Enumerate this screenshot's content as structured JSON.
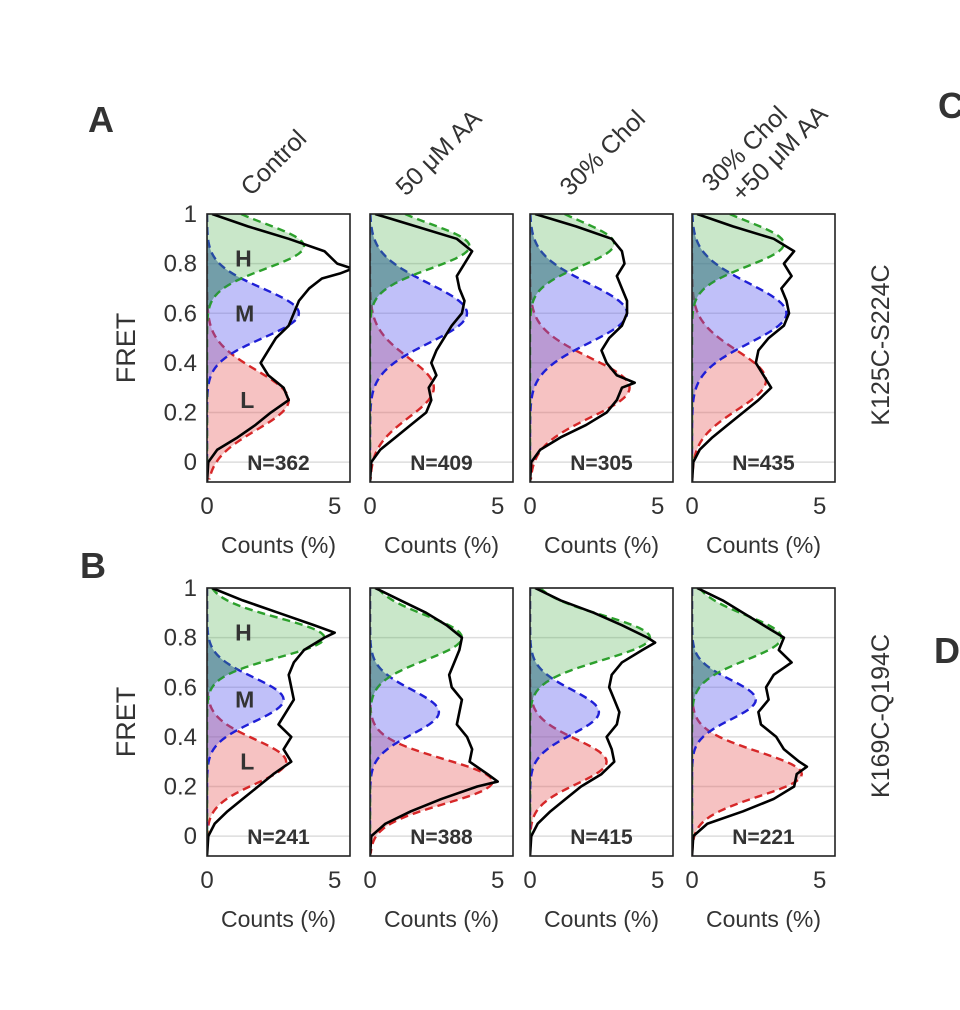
{
  "panels": [
    {
      "letter": "A"
    },
    {
      "letter": "B"
    }
  ],
  "edge_letters": [
    "C",
    "D"
  ],
  "chart_data": {
    "type": "histogram-grid",
    "column_titles": [
      [
        "Control"
      ],
      [
        "50 μM AA"
      ],
      [
        "30% Chol"
      ],
      [
        "30% Chol",
        "+50 μM AA"
      ]
    ],
    "row_labels": [
      "K125C-S224C",
      "K169C-Q194C"
    ],
    "ylabel": "FRET",
    "xlabel": "Counts (%)",
    "y_ticks": [
      "1",
      "0.8",
      "0.6",
      "0.4",
      "0.2",
      "0"
    ],
    "y_tick_values": [
      1,
      0.8,
      0.6,
      0.4,
      0.2,
      0
    ],
    "x_ticks": [
      "0",
      "5"
    ],
    "x_tick_values": [
      0,
      5
    ],
    "ylim": [
      -0.08,
      1.0
    ],
    "xlim": [
      0,
      5.6
    ],
    "grid": true,
    "component_labels": [
      "H",
      "M",
      "L"
    ],
    "component_colors": {
      "H": "#2ca02c",
      "M": "#1f1fd6",
      "L": "#d62728"
    },
    "grid_rows": [
      {
        "name": "K125C-S224C",
        "cells": [
          {
            "n_label": "N=362",
            "total": {
              "y": [
                1.0,
                0.95,
                0.9,
                0.85,
                0.8,
                0.78,
                0.76,
                0.74,
                0.7,
                0.65,
                0.6,
                0.55,
                0.5,
                0.45,
                0.4,
                0.35,
                0.3,
                0.25,
                0.2,
                0.15,
                0.1,
                0.05,
                0.0
              ],
              "x": [
                0.2,
                1.6,
                3.2,
                4.6,
                5.1,
                5.7,
                5.2,
                4.5,
                4.0,
                3.6,
                3.4,
                3.2,
                2.7,
                2.4,
                2.1,
                2.4,
                3.0,
                3.2,
                2.5,
                1.9,
                1.2,
                0.4,
                0.05
              ]
            },
            "H": {
              "center": 0.87,
              "width": 0.09,
              "amp": 3.8
            },
            "M": {
              "center": 0.6,
              "width": 0.1,
              "amp": 3.6
            },
            "L": {
              "center": 0.25,
              "width": 0.12,
              "amp": 3.2
            }
          },
          {
            "n_label": "N=409",
            "total": {
              "y": [
                1.0,
                0.95,
                0.9,
                0.85,
                0.8,
                0.75,
                0.7,
                0.65,
                0.6,
                0.55,
                0.5,
                0.45,
                0.4,
                0.35,
                0.3,
                0.25,
                0.2,
                0.15,
                0.1,
                0.05,
                0.0
              ],
              "x": [
                0.2,
                1.8,
                3.4,
                4.0,
                3.7,
                3.4,
                3.5,
                3.7,
                3.6,
                3.2,
                2.9,
                2.6,
                2.4,
                2.6,
                2.3,
                2.4,
                2.2,
                1.6,
                1.0,
                0.4,
                0.05
              ]
            },
            "H": {
              "center": 0.87,
              "width": 0.09,
              "amp": 3.9
            },
            "M": {
              "center": 0.6,
              "width": 0.12,
              "amp": 3.8
            },
            "L": {
              "center": 0.3,
              "width": 0.12,
              "amp": 2.5
            }
          },
          {
            "n_label": "N=305",
            "total": {
              "y": [
                1.0,
                0.95,
                0.9,
                0.85,
                0.8,
                0.75,
                0.7,
                0.65,
                0.6,
                0.55,
                0.5,
                0.45,
                0.4,
                0.35,
                0.32,
                0.3,
                0.25,
                0.2,
                0.15,
                0.1,
                0.05,
                0.0
              ],
              "x": [
                0.2,
                1.8,
                3.2,
                3.6,
                3.7,
                3.4,
                3.6,
                3.8,
                3.8,
                3.6,
                3.1,
                2.8,
                3.0,
                3.4,
                4.1,
                3.6,
                3.4,
                3.0,
                2.2,
                1.2,
                0.4,
                0.05
              ]
            },
            "H": {
              "center": 0.88,
              "width": 0.09,
              "amp": 3.3
            },
            "M": {
              "center": 0.6,
              "width": 0.12,
              "amp": 3.8
            },
            "L": {
              "center": 0.3,
              "width": 0.12,
              "amp": 3.9
            }
          },
          {
            "n_label": "N=435",
            "total": {
              "y": [
                1.0,
                0.95,
                0.9,
                0.85,
                0.8,
                0.75,
                0.7,
                0.65,
                0.6,
                0.55,
                0.5,
                0.45,
                0.4,
                0.35,
                0.3,
                0.25,
                0.2,
                0.15,
                0.1,
                0.05,
                0.0
              ],
              "x": [
                0.2,
                1.6,
                3.2,
                4.0,
                3.6,
                3.9,
                3.5,
                3.7,
                3.8,
                3.6,
                3.0,
                2.6,
                2.5,
                2.8,
                3.1,
                2.6,
                2.0,
                1.4,
                0.8,
                0.3,
                0.05
              ]
            },
            "H": {
              "center": 0.88,
              "width": 0.09,
              "amp": 3.6
            },
            "M": {
              "center": 0.6,
              "width": 0.12,
              "amp": 3.7
            },
            "L": {
              "center": 0.33,
              "width": 0.12,
              "amp": 2.9
            }
          }
        ]
      },
      {
        "name": "K169C-Q194C",
        "cells": [
          {
            "n_label": "N=241",
            "total": {
              "y": [
                1.0,
                0.95,
                0.9,
                0.85,
                0.82,
                0.8,
                0.75,
                0.7,
                0.65,
                0.6,
                0.55,
                0.5,
                0.45,
                0.4,
                0.35,
                0.3,
                0.25,
                0.2,
                0.15,
                0.1,
                0.05,
                0.0
              ],
              "x": [
                0.2,
                1.4,
                2.8,
                4.2,
                5.0,
                4.6,
                3.8,
                3.4,
                3.2,
                3.3,
                3.4,
                3.1,
                2.8,
                3.3,
                3.0,
                3.3,
                2.6,
                2.0,
                1.4,
                0.8,
                0.3,
                0.05
              ]
            },
            "H": {
              "center": 0.8,
              "width": 0.08,
              "amp": 4.6
            },
            "M": {
              "center": 0.55,
              "width": 0.09,
              "amp": 3.0
            },
            "L": {
              "center": 0.3,
              "width": 0.09,
              "amp": 3.1
            }
          },
          {
            "n_label": "N=388",
            "total": {
              "y": [
                1.0,
                0.95,
                0.9,
                0.85,
                0.8,
                0.75,
                0.7,
                0.65,
                0.6,
                0.55,
                0.5,
                0.45,
                0.4,
                0.35,
                0.3,
                0.25,
                0.22,
                0.2,
                0.15,
                0.1,
                0.05,
                0.0
              ],
              "x": [
                0.2,
                1.2,
                2.2,
                3.0,
                3.6,
                3.5,
                3.3,
                3.1,
                3.2,
                3.6,
                3.5,
                3.4,
                3.8,
                4.0,
                3.9,
                4.6,
                5.0,
                4.2,
                2.8,
                1.6,
                0.6,
                0.05
              ]
            },
            "H": {
              "center": 0.8,
              "width": 0.09,
              "amp": 3.6
            },
            "M": {
              "center": 0.5,
              "width": 0.09,
              "amp": 2.7
            },
            "L": {
              "center": 0.22,
              "width": 0.09,
              "amp": 4.8
            }
          },
          {
            "n_label": "N=415",
            "total": {
              "y": [
                1.0,
                0.95,
                0.9,
                0.85,
                0.8,
                0.78,
                0.75,
                0.7,
                0.65,
                0.6,
                0.55,
                0.5,
                0.45,
                0.4,
                0.35,
                0.3,
                0.25,
                0.2,
                0.15,
                0.1,
                0.05,
                0.0
              ],
              "x": [
                0.2,
                1.2,
                2.5,
                3.6,
                4.6,
                4.9,
                4.4,
                3.6,
                3.2,
                3.1,
                3.3,
                3.5,
                3.4,
                3.0,
                3.2,
                3.3,
                2.8,
                2.0,
                1.4,
                0.8,
                0.3,
                0.05
              ]
            },
            "H": {
              "center": 0.8,
              "width": 0.09,
              "amp": 4.7
            },
            "M": {
              "center": 0.5,
              "width": 0.09,
              "amp": 2.7
            },
            "L": {
              "center": 0.3,
              "width": 0.09,
              "amp": 3.0
            }
          },
          {
            "n_label": "N=221",
            "total": {
              "y": [
                1.0,
                0.95,
                0.9,
                0.85,
                0.8,
                0.75,
                0.7,
                0.65,
                0.6,
                0.55,
                0.5,
                0.45,
                0.4,
                0.35,
                0.3,
                0.28,
                0.25,
                0.2,
                0.15,
                0.1,
                0.05,
                0.0
              ],
              "x": [
                0.2,
                1.2,
                2.0,
                2.8,
                3.6,
                3.4,
                3.9,
                3.2,
                2.9,
                3.0,
                2.6,
                2.7,
                3.3,
                3.6,
                4.2,
                4.5,
                4.1,
                4.0,
                3.2,
                2.0,
                0.6,
                0.05
              ]
            },
            "H": {
              "center": 0.8,
              "width": 0.09,
              "amp": 3.5
            },
            "M": {
              "center": 0.55,
              "width": 0.08,
              "amp": 2.5
            },
            "L": {
              "center": 0.25,
              "width": 0.09,
              "amp": 4.3
            }
          }
        ]
      }
    ]
  }
}
